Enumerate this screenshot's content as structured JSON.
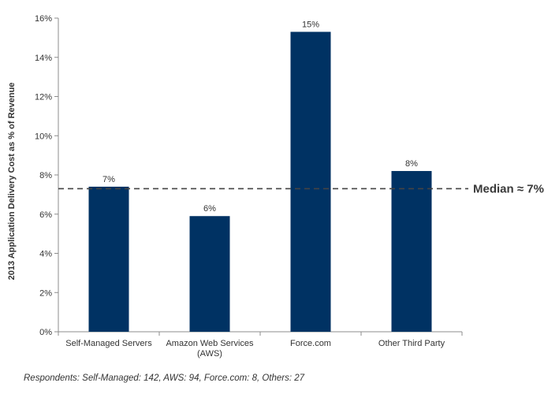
{
  "chart_data": {
    "type": "bar",
    "title": "",
    "xlabel": "",
    "ylabel": "2013 Application Delivery Cost as % of  Revenue",
    "categories": [
      [
        "Self-Managed Servers"
      ],
      [
        "Amazon Web Services",
        "(AWS)"
      ],
      [
        "Force.com"
      ],
      [
        "Other Third Party"
      ]
    ],
    "values": [
      7.4,
      5.9,
      15.3,
      8.2
    ],
    "data_labels": [
      "7%",
      "6%",
      "15%",
      "8%"
    ],
    "ylim": [
      0,
      16
    ],
    "yticks": [
      0,
      2,
      4,
      6,
      8,
      10,
      12,
      14,
      16
    ],
    "ytick_format": "{}%",
    "bar_color": "#003263",
    "grid": false,
    "reference_line": {
      "value": 7.3,
      "label": "Median  ≈ 7%",
      "style": "dashed",
      "color": "#444444"
    }
  },
  "footnote": "Respondents: Self-Managed: 142, AWS: 94, Force.com: 8, Others: 27"
}
